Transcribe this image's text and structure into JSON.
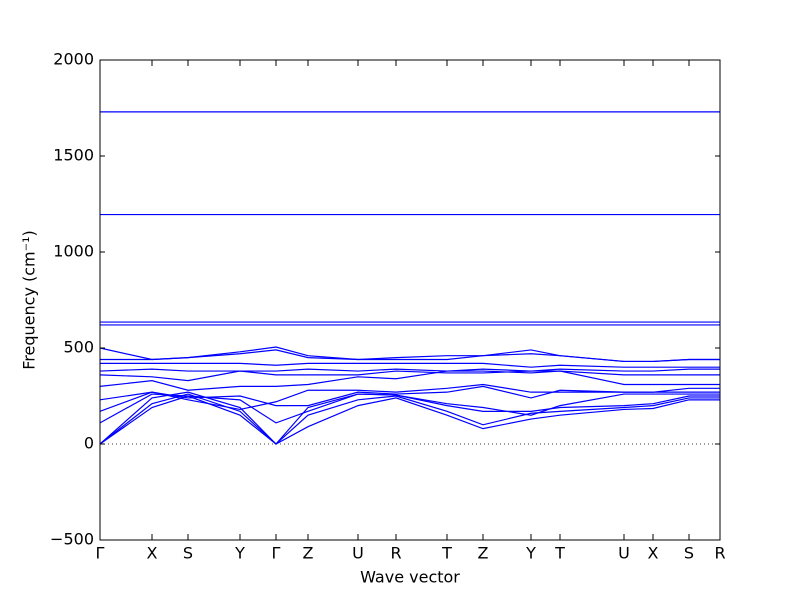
{
  "chart_data": {
    "type": "line",
    "xlabel": "Wave vector",
    "ylabel": "Frequency (cm⁻¹)",
    "color": "#0000ff",
    "xlim": [
      0,
      6.2
    ],
    "ylim": [
      -500,
      2000
    ],
    "yticks": [
      {
        "value": -500,
        "label": "−500"
      },
      0,
      500,
      1000,
      1500,
      2000
    ],
    "xticks": [
      {
        "value": 0,
        "label": "Γ"
      },
      {
        "value": 0.52,
        "label": "X"
      },
      {
        "value": 0.88,
        "label": "S"
      },
      {
        "value": 1.4,
        "label": "Y"
      },
      {
        "value": 1.76,
        "label": "Γ"
      },
      {
        "value": 2.08,
        "label": "Z"
      },
      {
        "value": 2.58,
        "label": "U"
      },
      {
        "value": 2.96,
        "label": "R"
      },
      {
        "value": 3.47,
        "label": "T"
      },
      {
        "value": 3.83,
        "label": "Z"
      },
      {
        "value": 4.31,
        "label": "Y"
      },
      {
        "value": 4.6,
        "label": "T"
      },
      {
        "value": 5.24,
        "label": "U"
      },
      {
        "value": 5.53,
        "label": "X"
      },
      {
        "value": 5.89,
        "label": "S"
      },
      {
        "value": 6.2,
        "label": "R"
      }
    ],
    "x": [
      0,
      0.52,
      0.88,
      1.4,
      1.76,
      2.08,
      2.58,
      2.96,
      3.47,
      3.83,
      4.31,
      4.6,
      5.24,
      5.53,
      5.89,
      6.2
    ],
    "series": [
      {
        "values": [
          0,
          190,
          250,
          150,
          0,
          90,
          200,
          240,
          150,
          80,
          130,
          150,
          180,
          185,
          230,
          230
        ]
      },
      {
        "values": [
          0,
          210,
          260,
          170,
          0,
          150,
          230,
          250,
          170,
          100,
          160,
          170,
          190,
          200,
          240,
          240
        ]
      },
      {
        "values": [
          0,
          240,
          270,
          190,
          0,
          190,
          260,
          255,
          200,
          170,
          170,
          190,
          200,
          210,
          250,
          250
        ]
      },
      {
        "values": [
          110,
          260,
          250,
          230,
          110,
          170,
          260,
          255,
          210,
          190,
          150,
          200,
          260,
          260,
          260,
          260
        ]
      },
      {
        "values": [
          170,
          270,
          240,
          250,
          200,
          200,
          270,
          260,
          270,
          300,
          240,
          280,
          270,
          270,
          270,
          270
        ]
      },
      {
        "values": [
          230,
          270,
          230,
          180,
          220,
          280,
          280,
          270,
          290,
          310,
          270,
          270,
          270,
          270,
          290,
          290
        ]
      },
      {
        "values": [
          300,
          330,
          280,
          300,
          300,
          310,
          350,
          340,
          380,
          380,
          370,
          380,
          310,
          310,
          310,
          310
        ]
      },
      {
        "values": [
          360,
          350,
          330,
          380,
          360,
          360,
          360,
          380,
          370,
          370,
          380,
          380,
          360,
          360,
          360,
          360
        ]
      },
      {
        "values": [
          380,
          390,
          380,
          380,
          380,
          390,
          380,
          390,
          380,
          390,
          380,
          390,
          380,
          380,
          390,
          390
        ]
      },
      {
        "values": [
          420,
          420,
          420,
          420,
          410,
          420,
          420,
          420,
          420,
          420,
          400,
          410,
          400,
          400,
          400,
          400
        ]
      },
      {
        "values": [
          440,
          440,
          450,
          470,
          490,
          450,
          440,
          440,
          440,
          460,
          470,
          460,
          430,
          430,
          440,
          440
        ]
      },
      {
        "values": [
          500,
          440,
          450,
          480,
          505,
          460,
          440,
          450,
          460,
          460,
          490,
          460,
          430,
          430,
          440,
          440
        ]
      },
      {
        "values": [
          620,
          620,
          620,
          620,
          620,
          620,
          620,
          620,
          620,
          620,
          620,
          620,
          620,
          620,
          620,
          620
        ]
      },
      {
        "values": [
          635,
          635,
          635,
          635,
          635,
          635,
          635,
          635,
          635,
          635,
          635,
          635,
          635,
          635,
          635,
          635
        ]
      },
      {
        "values": [
          1195,
          1195,
          1195,
          1195,
          1195,
          1195,
          1195,
          1195,
          1195,
          1195,
          1195,
          1195,
          1195,
          1195,
          1195,
          1195
        ]
      },
      {
        "values": [
          1730,
          1730,
          1730,
          1730,
          1730,
          1730,
          1730,
          1730,
          1730,
          1730,
          1730,
          1730,
          1730,
          1730,
          1730,
          1730
        ]
      }
    ]
  }
}
